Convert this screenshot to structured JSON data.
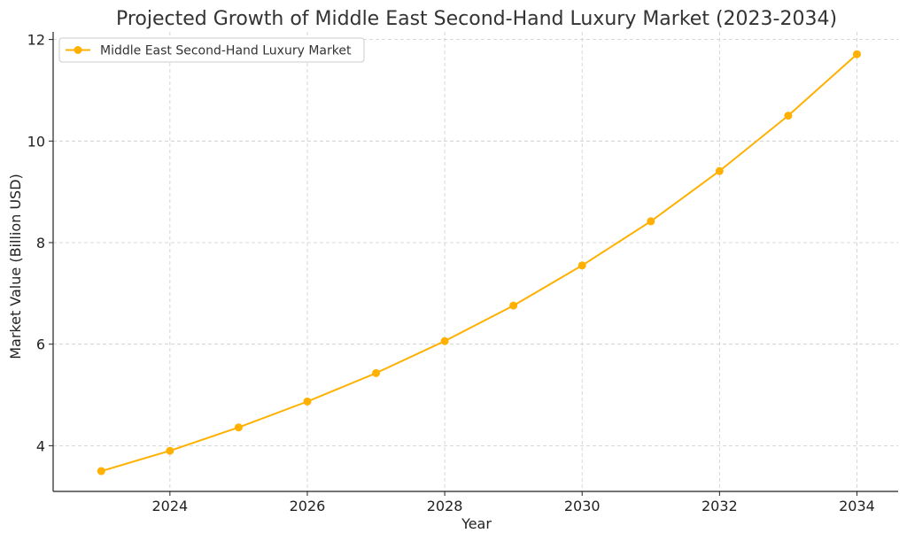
{
  "chart_data": {
    "type": "line",
    "title": "Projected Growth of Middle East Second-Hand Luxury Market (2023-2034)",
    "xlabel": "Year",
    "ylabel": "Market Value (Billion USD)",
    "xlim": [
      2022.3,
      2034.6
    ],
    "ylim": [
      3.1,
      12.15
    ],
    "xticks": [
      2024,
      2026,
      2028,
      2030,
      2032,
      2034
    ],
    "yticks": [
      4,
      6,
      8,
      10,
      12
    ],
    "grid": true,
    "legend_position": "top-left",
    "color": "#FFB000",
    "series": [
      {
        "name": "Middle East Second-Hand Luxury Market",
        "x": [
          2023,
          2024,
          2025,
          2026,
          2027,
          2028,
          2029,
          2030,
          2031,
          2032,
          2033,
          2034
        ],
        "y": [
          3.5,
          3.9,
          4.36,
          4.87,
          5.43,
          6.06,
          6.76,
          7.55,
          8.42,
          9.41,
          10.5,
          11.71
        ]
      }
    ]
  }
}
